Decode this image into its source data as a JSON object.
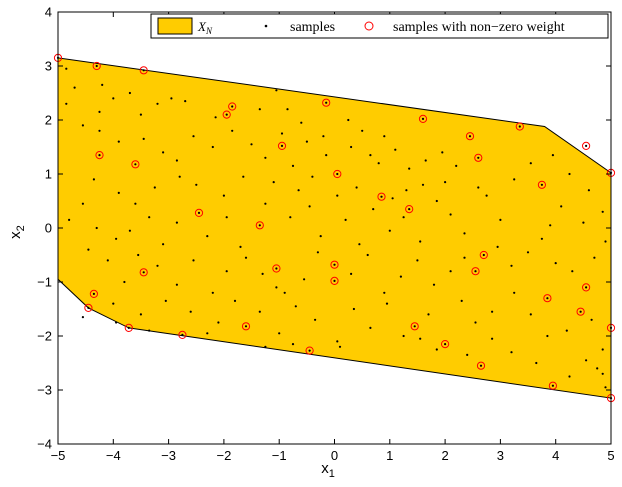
{
  "chart_data": {
    "type": "scatter",
    "xlabel": "x",
    "xlabel_sub": "1",
    "ylabel": "x",
    "ylabel_sub": "2",
    "xlim": [
      -5,
      5
    ],
    "ylim": [
      -4,
      4
    ],
    "xticks": [
      -5,
      -4,
      -3,
      -2,
      -1,
      0,
      1,
      2,
      3,
      4,
      5
    ],
    "yticks": [
      -4,
      -3,
      -2,
      -1,
      0,
      1,
      2,
      3,
      4
    ],
    "grid": false,
    "legend_position": "top-right",
    "colors": {
      "region_fill": "#FFCC00",
      "region_edge": "#000000",
      "sample": "#000000",
      "weighted": "#FF0000"
    },
    "legend": [
      {
        "label": "X",
        "label_sub": "N",
        "kind": "patch"
      },
      {
        "label": "samples",
        "kind": "dot"
      },
      {
        "label": "samples with non−zero weight",
        "kind": "circle"
      }
    ],
    "region_polygon": [
      [
        -5,
        3.15
      ],
      [
        3.8,
        1.88
      ],
      [
        5,
        1.02
      ],
      [
        5,
        -3.15
      ],
      [
        -3.72,
        -1.85
      ],
      [
        -4.45,
        -1.48
      ],
      [
        -5,
        -0.95
      ]
    ],
    "weighted_samples": [
      [
        -5,
        3.15
      ],
      [
        -4.3,
        3.0
      ],
      [
        -3.45,
        2.92
      ],
      [
        -4.25,
        1.35
      ],
      [
        -3.6,
        1.18
      ],
      [
        -1.85,
        2.25
      ],
      [
        -1.95,
        2.1
      ],
      [
        -0.95,
        1.52
      ],
      [
        -0.15,
        2.32
      ],
      [
        0.05,
        1.0
      ],
      [
        1.6,
        2.02
      ],
      [
        2.45,
        1.7
      ],
      [
        2.6,
        1.3
      ],
      [
        3.35,
        1.88
      ],
      [
        3.75,
        0.8
      ],
      [
        4.55,
        1.52
      ],
      [
        5,
        1.02
      ],
      [
        -2.45,
        0.28
      ],
      [
        -1.35,
        0.05
      ],
      [
        0.85,
        0.58
      ],
      [
        1.35,
        0.35
      ],
      [
        -3.45,
        -0.82
      ],
      [
        -1.05,
        -0.75
      ],
      [
        0.0,
        -0.68
      ],
      [
        0.0,
        -0.98
      ],
      [
        2.55,
        -0.8
      ],
      [
        2.7,
        -0.5
      ],
      [
        4.55,
        -1.1
      ],
      [
        3.85,
        -1.3
      ],
      [
        4.45,
        -1.55
      ],
      [
        -4.35,
        -1.22
      ],
      [
        -4.45,
        -1.48
      ],
      [
        -3.72,
        -1.85
      ],
      [
        -2.75,
        -1.98
      ],
      [
        -1.6,
        -1.82
      ],
      [
        -0.45,
        -2.27
      ],
      [
        1.45,
        -1.82
      ],
      [
        2.0,
        -2.15
      ],
      [
        2.65,
        -2.55
      ],
      [
        3.95,
        -2.92
      ],
      [
        5,
        -1.85
      ],
      [
        5,
        -3.15
      ]
    ],
    "samples": [
      [
        -4.85,
        2.95
      ],
      [
        -4.7,
        2.6
      ],
      [
        -4.85,
        2.3
      ],
      [
        -4.2,
        2.65
      ],
      [
        -4.0,
        2.4
      ],
      [
        -4.25,
        2.15
      ],
      [
        -3.7,
        2.5
      ],
      [
        -3.5,
        2.1
      ],
      [
        -3.2,
        2.3
      ],
      [
        -2.95,
        2.4
      ],
      [
        -2.7,
        2.35
      ],
      [
        -4.25,
        1.8
      ],
      [
        -3.9,
        1.6
      ],
      [
        -3.45,
        1.65
      ],
      [
        -3.1,
        1.4
      ],
      [
        -2.85,
        1.25
      ],
      [
        -2.55,
        1.7
      ],
      [
        -2.2,
        1.5
      ],
      [
        -1.85,
        1.8
      ],
      [
        -1.35,
        2.2
      ],
      [
        -1.05,
        2.55
      ],
      [
        -0.85,
        2.2
      ],
      [
        -0.6,
        1.95
      ],
      [
        -1.5,
        1.55
      ],
      [
        -1.25,
        1.3
      ],
      [
        -0.95,
        1.75
      ],
      [
        -0.5,
        1.6
      ],
      [
        -0.2,
        1.7
      ],
      [
        0.25,
        2.0
      ],
      [
        0.5,
        1.8
      ],
      [
        0.3,
        1.5
      ],
      [
        -0.15,
        1.35
      ],
      [
        0.9,
        1.7
      ],
      [
        1.1,
        1.45
      ],
      [
        1.35,
        1.1
      ],
      [
        1.65,
        1.25
      ],
      [
        1.95,
        1.4
      ],
      [
        2.2,
        1.15
      ],
      [
        2.0,
        0.85
      ],
      [
        1.6,
        0.8
      ],
      [
        1.3,
        0.7
      ],
      [
        0.8,
        1.2
      ],
      [
        0.4,
        0.75
      ],
      [
        0.05,
        0.6
      ],
      [
        -0.4,
        0.95
      ],
      [
        -0.75,
        1.15
      ],
      [
        -1.1,
        0.85
      ],
      [
        -1.65,
        0.95
      ],
      [
        -2.0,
        0.6
      ],
      [
        -2.5,
        0.8
      ],
      [
        -2.8,
        0.95
      ],
      [
        -3.25,
        0.75
      ],
      [
        -3.6,
        0.45
      ],
      [
        -3.9,
        0.65
      ],
      [
        -4.35,
        0.9
      ],
      [
        -4.55,
        0.45
      ],
      [
        -4.8,
        0.15
      ],
      [
        -4.3,
        0.0
      ],
      [
        -3.95,
        -0.2
      ],
      [
        -3.7,
        -0.05
      ],
      [
        -3.35,
        0.2
      ],
      [
        -3.1,
        -0.3
      ],
      [
        -2.85,
        0.1
      ],
      [
        -2.3,
        -0.15
      ],
      [
        -1.95,
        0.2
      ],
      [
        -1.7,
        -0.35
      ],
      [
        -1.25,
        0.45
      ],
      [
        -0.8,
        0.2
      ],
      [
        -0.45,
        0.4
      ],
      [
        -0.25,
        -0.15
      ],
      [
        0.2,
        0.15
      ],
      [
        0.45,
        -0.3
      ],
      [
        0.7,
        0.35
      ],
      [
        1.0,
        -0.05
      ],
      [
        1.25,
        0.2
      ],
      [
        1.55,
        -0.25
      ],
      [
        1.85,
        0.5
      ],
      [
        2.1,
        0.25
      ],
      [
        2.35,
        -0.1
      ],
      [
        2.75,
        0.6
      ],
      [
        3.0,
        0.15
      ],
      [
        3.25,
        0.9
      ],
      [
        3.55,
        1.2
      ],
      [
        3.95,
        1.35
      ],
      [
        4.25,
        1.0
      ],
      [
        4.6,
        0.7
      ],
      [
        4.85,
        0.3
      ],
      [
        4.5,
        0.1
      ],
      [
        4.1,
        0.4
      ],
      [
        3.75,
        -0.2
      ],
      [
        4.9,
        -0.25
      ],
      [
        4.7,
        -0.55
      ],
      [
        4.3,
        -0.8
      ],
      [
        4.0,
        -0.65
      ],
      [
        3.5,
        -0.45
      ],
      [
        3.2,
        -0.7
      ],
      [
        2.95,
        -0.35
      ],
      [
        2.35,
        -0.55
      ],
      [
        2.1,
        -0.8
      ],
      [
        1.8,
        -1.05
      ],
      [
        1.5,
        -0.6
      ],
      [
        1.2,
        -0.9
      ],
      [
        0.9,
        -1.2
      ],
      [
        0.6,
        -0.5
      ],
      [
        0.3,
        -0.85
      ],
      [
        -0.3,
        -0.45
      ],
      [
        -0.55,
        -0.95
      ],
      [
        -0.9,
        -1.2
      ],
      [
        -1.3,
        -0.85
      ],
      [
        -1.6,
        -0.55
      ],
      [
        -1.95,
        -0.8
      ],
      [
        -2.2,
        -1.2
      ],
      [
        -2.55,
        -0.6
      ],
      [
        -2.85,
        -1.05
      ],
      [
        -3.2,
        -0.7
      ],
      [
        -3.55,
        -0.5
      ],
      [
        -3.8,
        -1.0
      ],
      [
        -4.1,
        -0.6
      ],
      [
        -4.45,
        -0.4
      ],
      [
        -4.0,
        -1.4
      ],
      [
        -3.5,
        -1.6
      ],
      [
        -3.35,
        -1.9
      ],
      [
        -3.05,
        -1.35
      ],
      [
        -2.6,
        -1.55
      ],
      [
        -2.1,
        -1.75
      ],
      [
        -1.8,
        -1.35
      ],
      [
        -1.35,
        -1.55
      ],
      [
        -1.0,
        -1.95
      ],
      [
        -0.7,
        -1.45
      ],
      [
        -0.35,
        -1.7
      ],
      [
        0.05,
        -2.1
      ],
      [
        0.35,
        -1.5
      ],
      [
        0.65,
        -1.85
      ],
      [
        0.95,
        -1.4
      ],
      [
        1.25,
        -2.0
      ],
      [
        1.7,
        -1.6
      ],
      [
        2.3,
        -1.35
      ],
      [
        2.55,
        -1.75
      ],
      [
        2.85,
        -1.55
      ],
      [
        3.25,
        -1.2
      ],
      [
        3.55,
        -1.6
      ],
      [
        3.85,
        -2.0
      ],
      [
        4.2,
        -1.9
      ],
      [
        4.65,
        -1.7
      ],
      [
        4.85,
        -2.25
      ],
      [
        4.55,
        -2.45
      ],
      [
        4.25,
        -2.75
      ],
      [
        3.65,
        -2.5
      ],
      [
        3.2,
        -2.3
      ],
      [
        2.85,
        -2.05
      ],
      [
        2.4,
        -2.35
      ],
      [
        1.85,
        -2.25
      ],
      [
        1.55,
        -2.05
      ],
      [
        0.1,
        -2.2
      ],
      [
        -0.75,
        -2.15
      ],
      [
        -1.25,
        -2.2
      ],
      [
        4.85,
        -2.7
      ],
      [
        4.9,
        -2.95
      ],
      [
        4.75,
        -2.6
      ],
      [
        -4.55,
        -1.65
      ],
      [
        -3.95,
        -1.75
      ],
      [
        -2.3,
        -1.95
      ],
      [
        -1.05,
        -1.1
      ],
      [
        1.05,
        0.55
      ],
      [
        2.6,
        0.75
      ],
      [
        3.9,
        0.05
      ],
      [
        -0.65,
        0.7
      ],
      [
        0.65,
        1.35
      ],
      [
        -2.15,
        2.05
      ],
      [
        -4.55,
        1.9
      ]
    ]
  }
}
